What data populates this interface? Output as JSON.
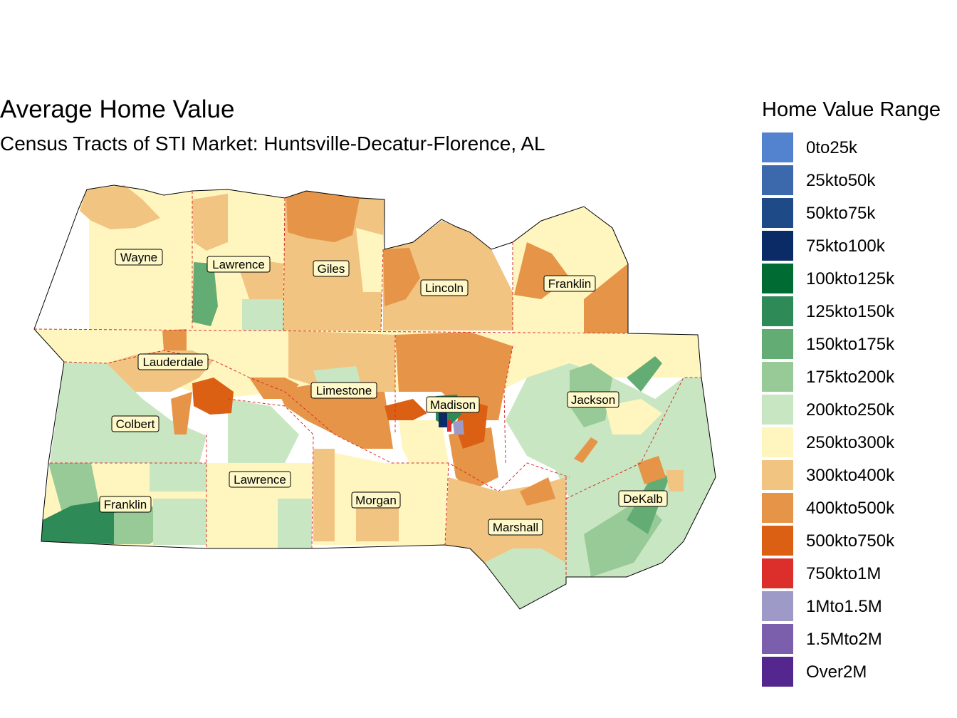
{
  "title": "Average Home Value",
  "subtitle": "Census Tracts of STI Market: Huntsville-Decatur-Florence, AL",
  "legend": {
    "title": "Home Value Range",
    "items": [
      {
        "label": "0to25k",
        "color": "#5383cf"
      },
      {
        "label": "25kto50k",
        "color": "#3c69ab"
      },
      {
        "label": "50kto75k",
        "color": "#1e4a88"
      },
      {
        "label": "75kto100k",
        "color": "#0b2b66"
      },
      {
        "label": "100kto125k",
        "color": "#006b32"
      },
      {
        "label": "125kto150k",
        "color": "#2e8b57"
      },
      {
        "label": "150kto175k",
        "color": "#63ac74"
      },
      {
        "label": "175kto200k",
        "color": "#98ca98"
      },
      {
        "label": "200kto250k",
        "color": "#c8e6c2"
      },
      {
        "label": "250kto300k",
        "color": "#fff6bf"
      },
      {
        "label": "300kto400k",
        "color": "#f1c482"
      },
      {
        "label": "400kto500k",
        "color": "#e69448"
      },
      {
        "label": "500kto750k",
        "color": "#dc6014"
      },
      {
        "label": "750kto1M",
        "color": "#dc2e2a"
      },
      {
        "label": "1Mto1.5M",
        "color": "#9e9ac8"
      },
      {
        "label": "1.5Mto2M",
        "color": "#7b5eac"
      },
      {
        "label": "Over2M",
        "color": "#54278f"
      }
    ]
  },
  "counties": [
    {
      "name": "Wayne"
    },
    {
      "name": "Lawrence"
    },
    {
      "name": "Giles"
    },
    {
      "name": "Lincoln"
    },
    {
      "name": "Franklin"
    },
    {
      "name": "Lauderdale"
    },
    {
      "name": "Limestone"
    },
    {
      "name": "Madison"
    },
    {
      "name": "Jackson"
    },
    {
      "name": "Colbert"
    },
    {
      "name": "Lawrence"
    },
    {
      "name": "Franklin"
    },
    {
      "name": "Morgan"
    },
    {
      "name": "Marshall"
    },
    {
      "name": "DeKalb"
    }
  ]
}
